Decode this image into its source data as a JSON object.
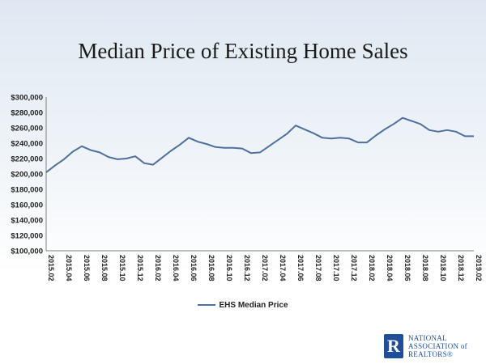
{
  "chart_data": {
    "type": "line",
    "title": "Median Price of Existing Home Sales",
    "xlabel": "",
    "ylabel": "",
    "ylim": [
      100000,
      300000
    ],
    "ytick_labels": [
      "$100,000",
      "$120,000",
      "$140,000",
      "$160,000",
      "$180,000",
      "$200,000",
      "$220,000",
      "$240,000",
      "$260,000",
      "$280,000",
      "$300,000"
    ],
    "x_tick_labels": [
      "2015.02",
      "2015.04",
      "2015.06",
      "2015.08",
      "2015.10",
      "2015.12",
      "2016.02",
      "2016.04",
      "2016.06",
      "2016.08",
      "2016.10",
      "2016.12",
      "2017.02",
      "2017.04",
      "2017.06",
      "2017.08",
      "2017.10",
      "2017.12",
      "2018.02",
      "2018.04",
      "2018.06",
      "2018.08",
      "2018.10",
      "2018.12",
      "2019.02"
    ],
    "legend_position": "bottom",
    "grid": false,
    "series": [
      {
        "name": "EHS Median Price",
        "color": "#4f6f9f",
        "x": [
          "2015.02",
          "2015.03",
          "2015.04",
          "2015.05",
          "2015.06",
          "2015.07",
          "2015.08",
          "2015.09",
          "2015.10",
          "2015.11",
          "2015.12",
          "2016.01",
          "2016.02",
          "2016.03",
          "2016.04",
          "2016.05",
          "2016.06",
          "2016.07",
          "2016.08",
          "2016.09",
          "2016.10",
          "2016.11",
          "2016.12",
          "2017.01",
          "2017.02",
          "2017.03",
          "2017.04",
          "2017.05",
          "2017.06",
          "2017.07",
          "2017.08",
          "2017.09",
          "2017.10",
          "2017.11",
          "2017.12",
          "2018.01",
          "2018.02",
          "2018.03",
          "2018.04",
          "2018.05",
          "2018.06",
          "2018.07",
          "2018.08",
          "2018.09",
          "2018.10",
          "2018.11",
          "2018.12",
          "2019.01",
          "2019.02"
        ],
        "values": [
          202000,
          211000,
          219000,
          229000,
          236000,
          231000,
          228000,
          222000,
          219000,
          220000,
          223000,
          214000,
          212000,
          221000,
          230000,
          238000,
          247000,
          242000,
          239000,
          235000,
          234000,
          234000,
          233000,
          227000,
          228000,
          236000,
          244000,
          252000,
          263000,
          258000,
          253000,
          247000,
          246000,
          247000,
          246000,
          241000,
          241000,
          250000,
          258000,
          265000,
          273000,
          269000,
          265000,
          257000,
          255000,
          257000,
          255000,
          249000,
          249000
        ]
      }
    ]
  },
  "branding": {
    "logo_letter": "R",
    "logo_line1": "NATIONAL",
    "logo_line2": "ASSOCIATION of",
    "logo_line3": "REALTORS®"
  }
}
